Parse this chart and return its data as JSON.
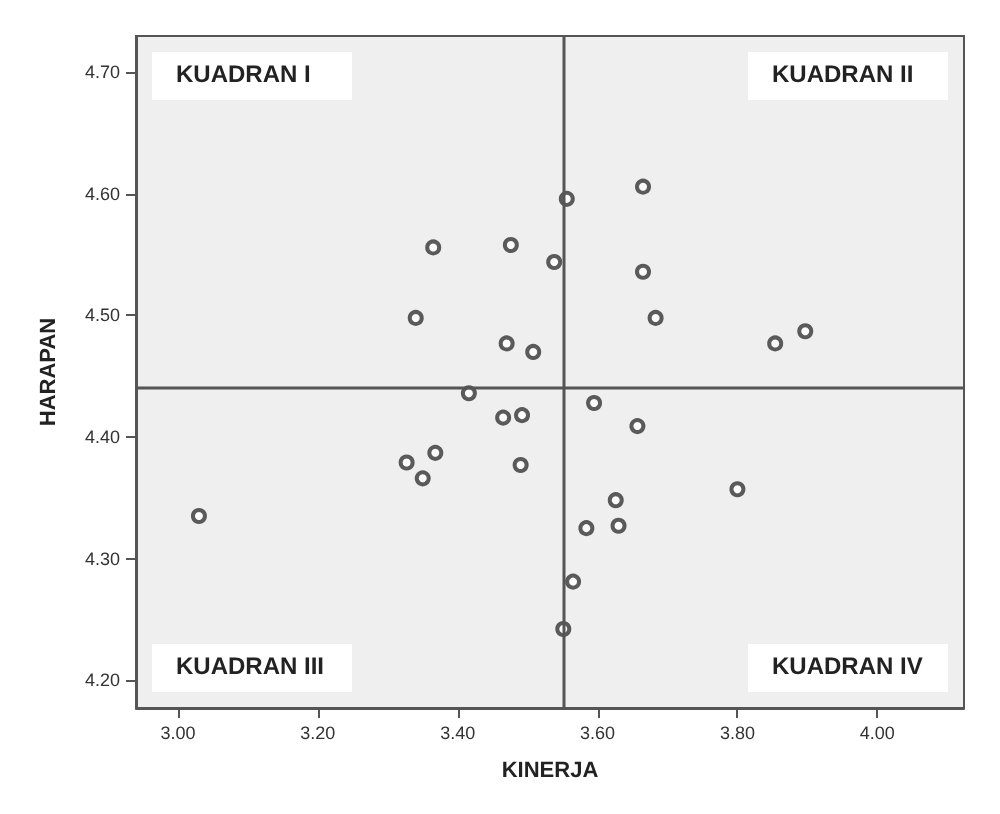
{
  "chart_data": {
    "type": "scatter",
    "xlabel": "KINERJA",
    "ylabel": "HARAPAN",
    "annotations": [
      "KUADRAN I",
      "KUADRAN II",
      "KUADRAN III",
      "KUADRAN IV"
    ],
    "x": [
      3.03,
      3.556,
      3.665,
      3.365,
      3.476,
      3.538,
      3.665,
      3.34,
      3.683,
      3.508,
      3.47,
      3.897,
      3.854,
      3.416,
      3.465,
      3.492,
      3.595,
      3.657,
      3.368,
      3.49,
      3.327,
      3.35,
      3.8,
      3.626,
      3.584,
      3.63,
      3.565,
      3.551
    ],
    "values": [
      4.335,
      4.596,
      4.606,
      4.556,
      4.558,
      4.544,
      4.536,
      4.498,
      4.498,
      4.47,
      4.477,
      4.487,
      4.477,
      4.436,
      4.416,
      4.418,
      4.428,
      4.409,
      4.387,
      4.377,
      4.379,
      4.366,
      4.357,
      4.348,
      4.325,
      4.327,
      4.281,
      4.242
    ],
    "color": "#333333",
    "marker": "circle",
    "grid": false,
    "xlim": [
      2.94,
      4.124
    ],
    "xticks": [
      {
        "value": 3.0,
        "label": "3.00"
      },
      {
        "value": 3.2,
        "label": "3.20"
      },
      {
        "value": 3.4,
        "label": "3.40"
      },
      {
        "value": 3.6,
        "label": "3.60"
      },
      {
        "value": 3.8,
        "label": "3.80"
      },
      {
        "value": 4.0,
        "label": "4.00"
      }
    ],
    "ylim": [
      4.177,
      4.73
    ],
    "yticks": [
      {
        "value": 4.2,
        "label": "4.20"
      },
      {
        "value": 4.3,
        "label": "4.30"
      },
      {
        "value": 4.4,
        "label": "4.40"
      },
      {
        "value": 4.5,
        "label": "4.50"
      },
      {
        "value": 4.6,
        "label": "4.60"
      },
      {
        "value": 4.7,
        "label": "4.70"
      }
    ],
    "ref_lines": [
      {
        "axis": "x",
        "value": 3.551
      },
      {
        "axis": "y",
        "value": 4.439
      }
    ]
  }
}
